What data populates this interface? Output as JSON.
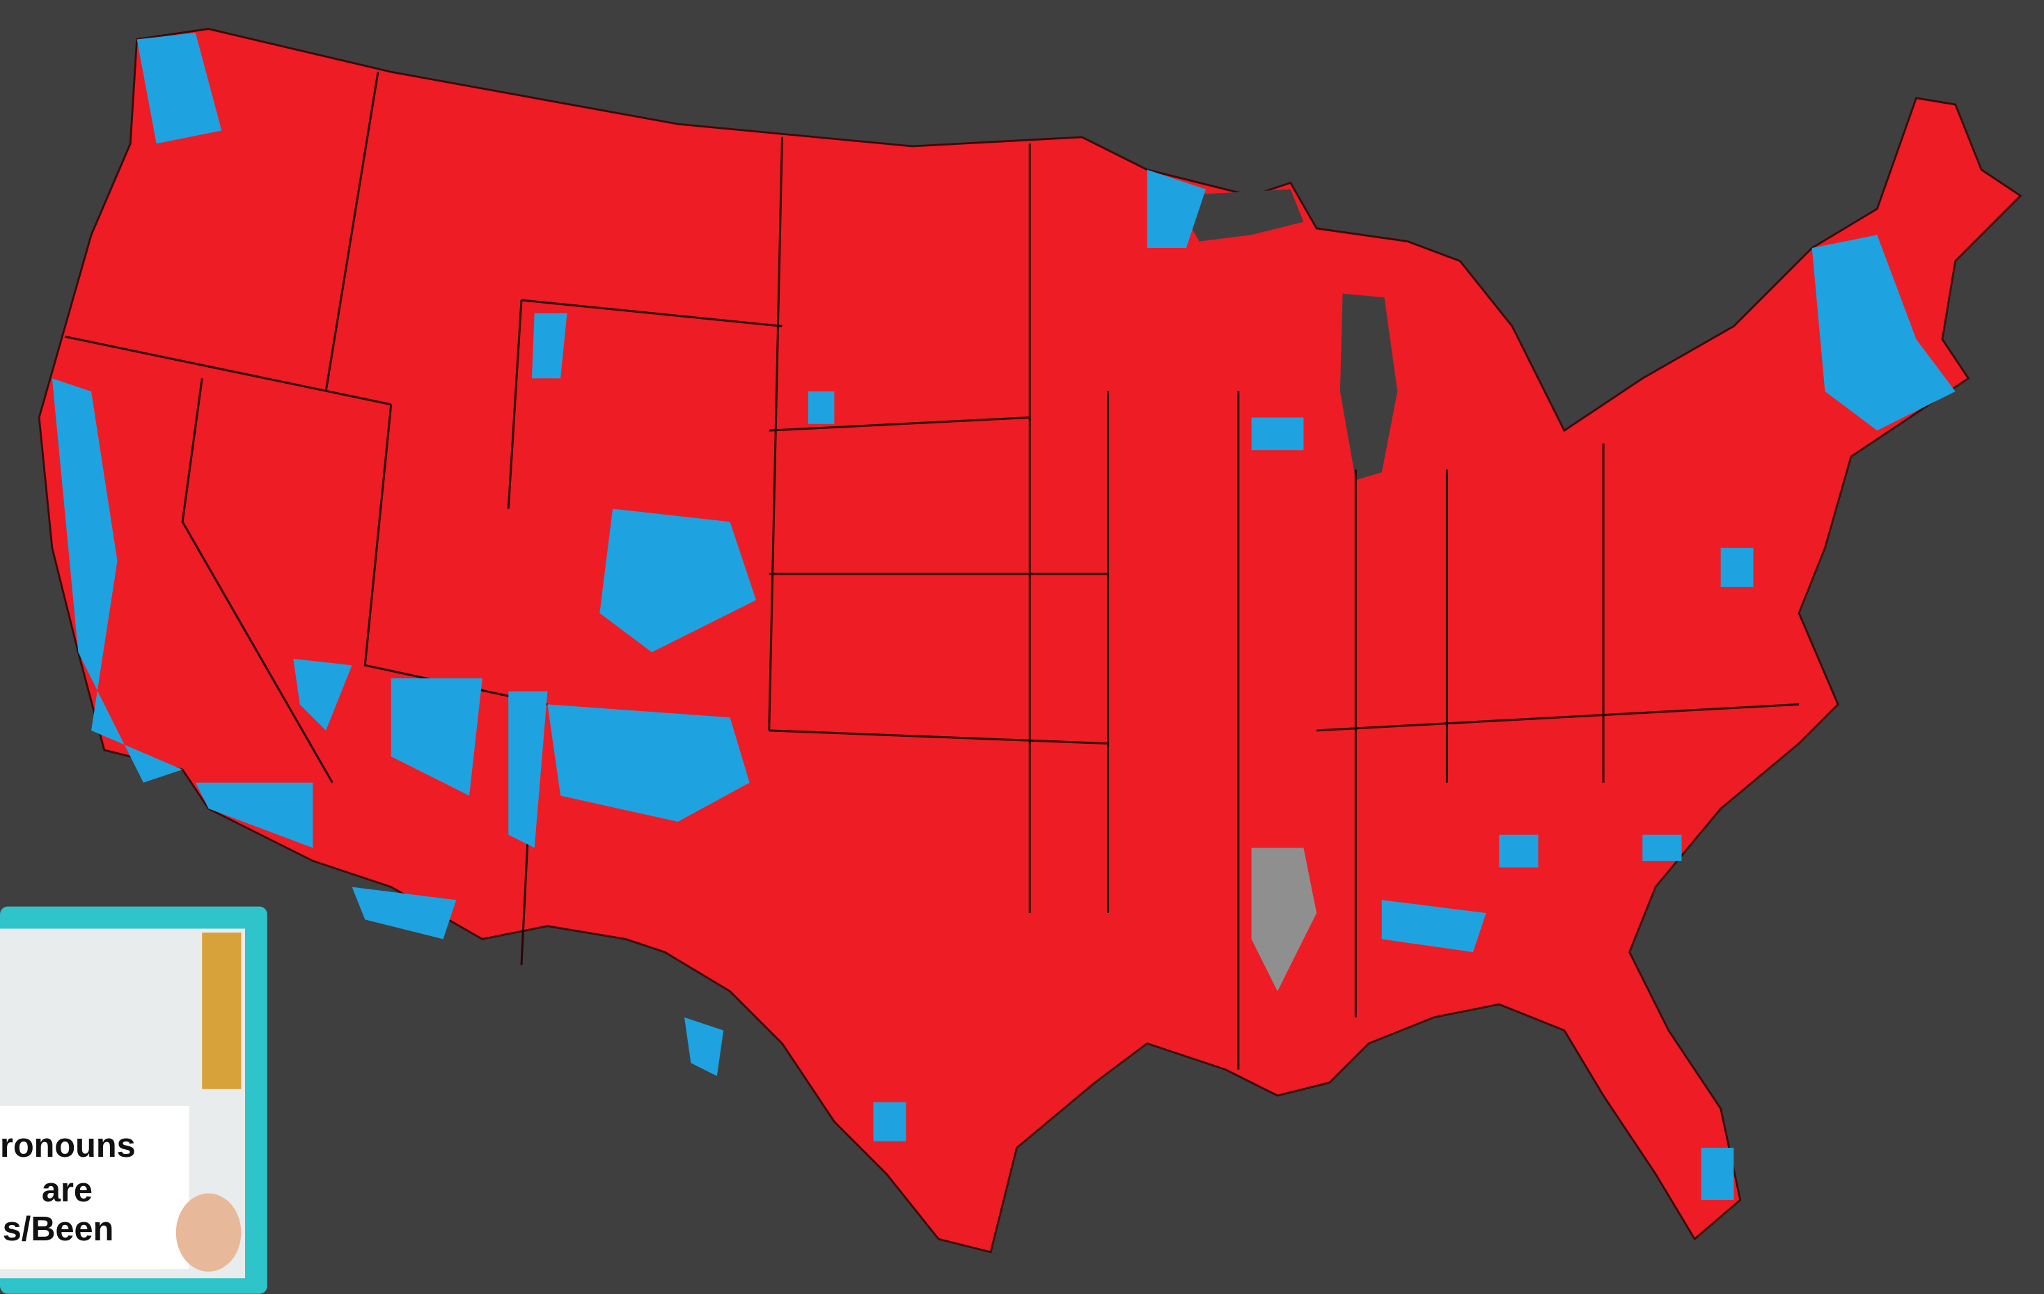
{
  "inset": {
    "sign_lines": [
      "ronouns",
      "are",
      "s/Been"
    ]
  }
}
